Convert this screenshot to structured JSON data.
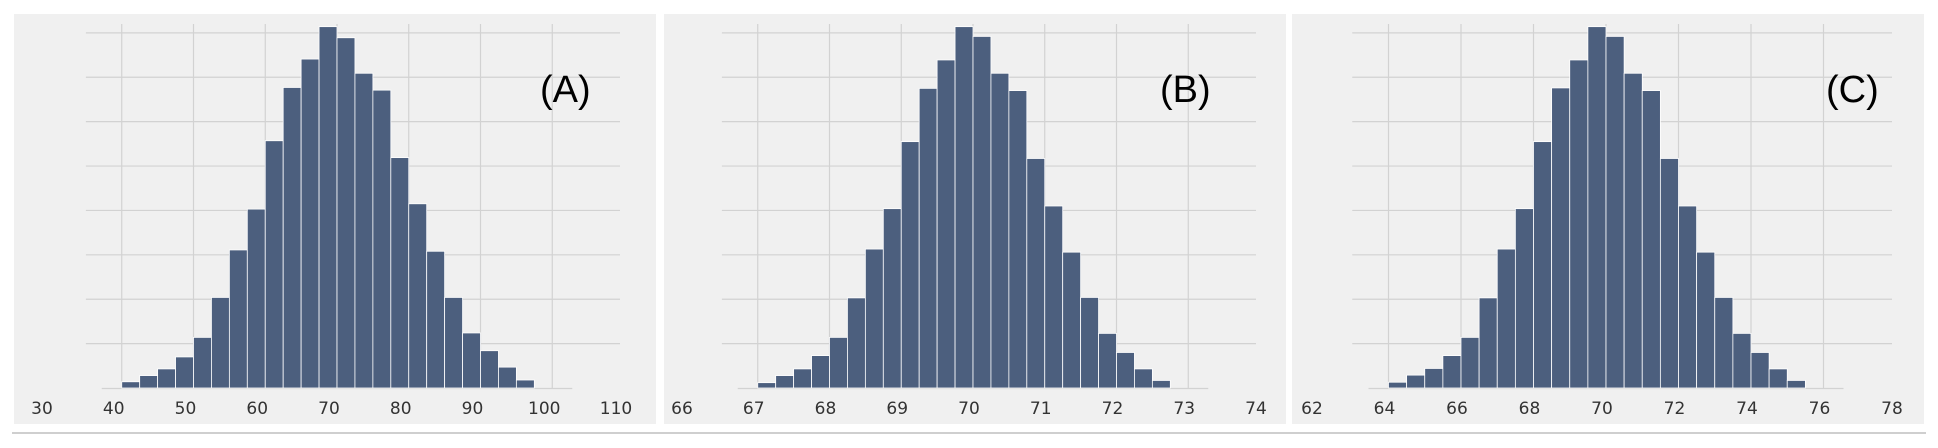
{
  "chart_data": [
    {
      "type": "bar",
      "panel_label": "(A)",
      "xlim": [
        30,
        110
      ],
      "xticks": [
        "30",
        "40",
        "50",
        "60",
        "70",
        "80",
        "90",
        "100",
        "110"
      ],
      "ylim": [
        0,
        8.2
      ],
      "grid": true,
      "bins": [
        {
          "x0": 40,
          "x1": 42.5,
          "count": 0.14
        },
        {
          "x0": 42.5,
          "x1": 45,
          "count": 0.28
        },
        {
          "x0": 45,
          "x1": 47.5,
          "count": 0.43
        },
        {
          "x0": 47.5,
          "x1": 50,
          "count": 0.7
        },
        {
          "x0": 50,
          "x1": 52.5,
          "count": 1.14
        },
        {
          "x0": 52.5,
          "x1": 55,
          "count": 2.04
        },
        {
          "x0": 55,
          "x1": 57.5,
          "count": 3.11
        },
        {
          "x0": 57.5,
          "x1": 60,
          "count": 4.03
        },
        {
          "x0": 60,
          "x1": 62.5,
          "count": 5.57
        },
        {
          "x0": 62.5,
          "x1": 65,
          "count": 6.77
        },
        {
          "x0": 65,
          "x1": 67.5,
          "count": 7.41
        },
        {
          "x0": 67.5,
          "x1": 70,
          "count": 8.14
        },
        {
          "x0": 70,
          "x1": 72.5,
          "count": 7.89
        },
        {
          "x0": 72.5,
          "x1": 75,
          "count": 7.09
        },
        {
          "x0": 75,
          "x1": 77.5,
          "count": 6.71
        },
        {
          "x0": 77.5,
          "x1": 80,
          "count": 5.19
        },
        {
          "x0": 80,
          "x1": 82.5,
          "count": 4.15
        },
        {
          "x0": 82.5,
          "x1": 85,
          "count": 3.08
        },
        {
          "x0": 85,
          "x1": 87.5,
          "count": 2.04
        },
        {
          "x0": 87.5,
          "x1": 90,
          "count": 1.24
        },
        {
          "x0": 90,
          "x1": 92.5,
          "count": 0.84
        },
        {
          "x0": 92.5,
          "x1": 95,
          "count": 0.47
        },
        {
          "x0": 95,
          "x1": 97.5,
          "count": 0.18
        }
      ]
    },
    {
      "type": "bar",
      "panel_label": "(B)",
      "xlim": [
        66,
        74
      ],
      "xticks": [
        "66",
        "67",
        "68",
        "69",
        "70",
        "71",
        "72",
        "73",
        "74"
      ],
      "ylim": [
        0,
        8.2
      ],
      "grid": true,
      "bins": [
        {
          "x0": 67,
          "x1": 67.25,
          "count": 0.12
        },
        {
          "x0": 67.25,
          "x1": 67.5,
          "count": 0.28
        },
        {
          "x0": 67.5,
          "x1": 67.75,
          "count": 0.43
        },
        {
          "x0": 67.75,
          "x1": 68,
          "count": 0.73
        },
        {
          "x0": 68,
          "x1": 68.25,
          "count": 1.14
        },
        {
          "x0": 68.25,
          "x1": 68.5,
          "count": 2.03
        },
        {
          "x0": 68.5,
          "x1": 68.75,
          "count": 3.13
        },
        {
          "x0": 68.75,
          "x1": 69,
          "count": 4.04
        },
        {
          "x0": 69,
          "x1": 69.25,
          "count": 5.55
        },
        {
          "x0": 69.25,
          "x1": 69.5,
          "count": 6.75
        },
        {
          "x0": 69.5,
          "x1": 69.75,
          "count": 7.39
        },
        {
          "x0": 69.75,
          "x1": 70,
          "count": 8.14
        },
        {
          "x0": 70,
          "x1": 70.25,
          "count": 7.92
        },
        {
          "x0": 70.25,
          "x1": 70.5,
          "count": 7.09
        },
        {
          "x0": 70.5,
          "x1": 70.75,
          "count": 6.7
        },
        {
          "x0": 70.75,
          "x1": 71,
          "count": 5.17
        },
        {
          "x0": 71,
          "x1": 71.25,
          "count": 4.1
        },
        {
          "x0": 71.25,
          "x1": 71.5,
          "count": 3.06
        },
        {
          "x0": 71.5,
          "x1": 71.75,
          "count": 2.04
        },
        {
          "x0": 71.75,
          "x1": 72,
          "count": 1.23
        },
        {
          "x0": 72,
          "x1": 72.25,
          "count": 0.8
        },
        {
          "x0": 72.25,
          "x1": 72.5,
          "count": 0.43
        },
        {
          "x0": 72.5,
          "x1": 72.75,
          "count": 0.17
        }
      ]
    },
    {
      "type": "bar",
      "panel_label": "(C)",
      "xlim": [
        62,
        78
      ],
      "xticks": [
        "62",
        "64",
        "66",
        "68",
        "70",
        "72",
        "74",
        "76",
        "78"
      ],
      "ylim": [
        0,
        8.2
      ],
      "grid": true,
      "bins": [
        {
          "x0": 64,
          "x1": 64.5,
          "count": 0.13
        },
        {
          "x0": 64.5,
          "x1": 65,
          "count": 0.29
        },
        {
          "x0": 65,
          "x1": 65.5,
          "count": 0.44
        },
        {
          "x0": 65.5,
          "x1": 66,
          "count": 0.73
        },
        {
          "x0": 66,
          "x1": 66.5,
          "count": 1.14
        },
        {
          "x0": 66.5,
          "x1": 67,
          "count": 2.03
        },
        {
          "x0": 67,
          "x1": 67.5,
          "count": 3.13
        },
        {
          "x0": 67.5,
          "x1": 68,
          "count": 4.04
        },
        {
          "x0": 68,
          "x1": 68.5,
          "count": 5.55
        },
        {
          "x0": 68.5,
          "x1": 69,
          "count": 6.76
        },
        {
          "x0": 69,
          "x1": 69.5,
          "count": 7.39
        },
        {
          "x0": 69.5,
          "x1": 70,
          "count": 8.14
        },
        {
          "x0": 70,
          "x1": 70.5,
          "count": 7.92
        },
        {
          "x0": 70.5,
          "x1": 71,
          "count": 7.09
        },
        {
          "x0": 71,
          "x1": 71.5,
          "count": 6.7
        },
        {
          "x0": 71.5,
          "x1": 72,
          "count": 5.17
        },
        {
          "x0": 72,
          "x1": 72.5,
          "count": 4.1
        },
        {
          "x0": 72.5,
          "x1": 73,
          "count": 3.06
        },
        {
          "x0": 73,
          "x1": 73.5,
          "count": 2.04
        },
        {
          "x0": 73.5,
          "x1": 74,
          "count": 1.23
        },
        {
          "x0": 74,
          "x1": 74.5,
          "count": 0.8
        },
        {
          "x0": 74.5,
          "x1": 75,
          "count": 0.43
        },
        {
          "x0": 75,
          "x1": 75.5,
          "count": 0.17
        }
      ]
    }
  ],
  "colors": {
    "bar_fill": "#4c5f7e",
    "bar_edge": "#ffffff",
    "plot_background": "#f0f0f0",
    "grid": "#d2d2d2",
    "text": "#000000",
    "tick_text": "#333333"
  }
}
